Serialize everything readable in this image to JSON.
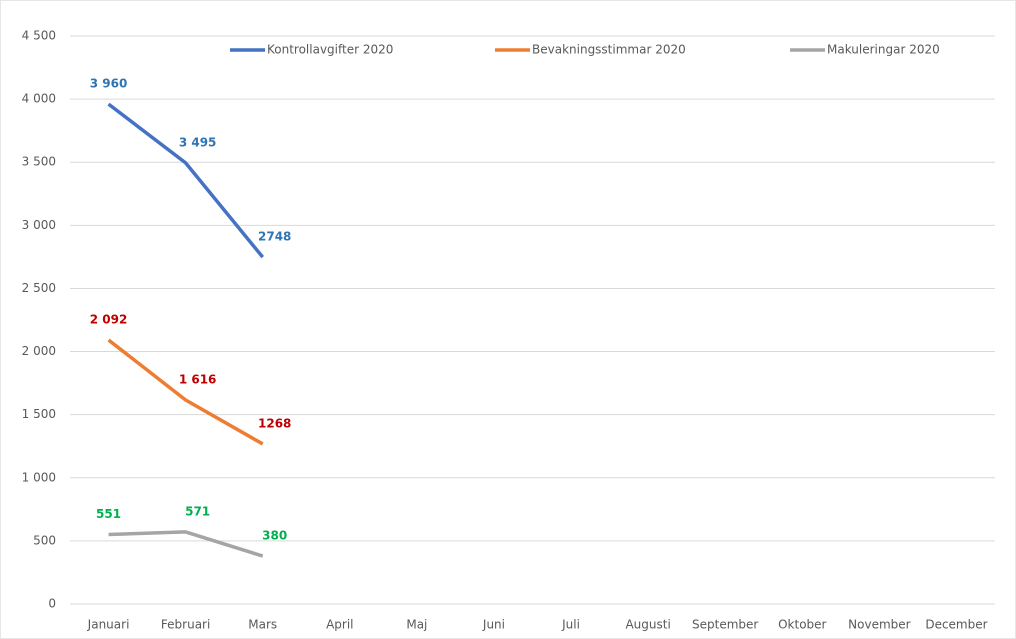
{
  "chart_data": {
    "type": "line",
    "categories": [
      "Januari",
      "Februari",
      "Mars",
      "April",
      "Maj",
      "Juni",
      "Juli",
      "Augusti",
      "September",
      "Oktober",
      "November",
      "December"
    ],
    "series": [
      {
        "name": "Kontrollavgifter 2020",
        "color": "#4472c4",
        "label_color": "#2e75b6",
        "values": [
          3960,
          3495,
          2748,
          null,
          null,
          null,
          null,
          null,
          null,
          null,
          null,
          null
        ],
        "value_labels": [
          "3 960",
          "3 495",
          "2748",
          null,
          null,
          null,
          null,
          null,
          null,
          null,
          null,
          null
        ]
      },
      {
        "name": "Bevakningsstimmar 2020",
        "color": "#ed7d31",
        "label_color": "#c00000",
        "values": [
          2092,
          1616,
          1268,
          null,
          null,
          null,
          null,
          null,
          null,
          null,
          null,
          null
        ],
        "value_labels": [
          "2 092",
          "1 616",
          "1268",
          null,
          null,
          null,
          null,
          null,
          null,
          null,
          null,
          null
        ]
      },
      {
        "name": "Makuleringar 2020",
        "color": "#a5a5a5",
        "label_color": "#00b050",
        "values": [
          551,
          571,
          380,
          null,
          null,
          null,
          null,
          null,
          null,
          null,
          null,
          null
        ],
        "value_labels": [
          "551",
          "571",
          "380",
          null,
          null,
          null,
          null,
          null,
          null,
          null,
          null,
          null
        ]
      }
    ],
    "ylim": [
      0,
      4500
    ],
    "yticks": [
      0,
      500,
      {
        "value": 1000,
        "label": "1 000"
      },
      {
        "value": 1500,
        "label": "1 500"
      },
      {
        "value": 2000,
        "label": "2 000"
      },
      {
        "value": 2500,
        "label": "2 500"
      },
      {
        "value": 3000,
        "label": "3 000"
      },
      {
        "value": 3500,
        "label": "3 500"
      },
      {
        "value": 4000,
        "label": "4 000"
      },
      {
        "value": 4500,
        "label": "4 500"
      }
    ],
    "grid": true,
    "legend": "top"
  }
}
